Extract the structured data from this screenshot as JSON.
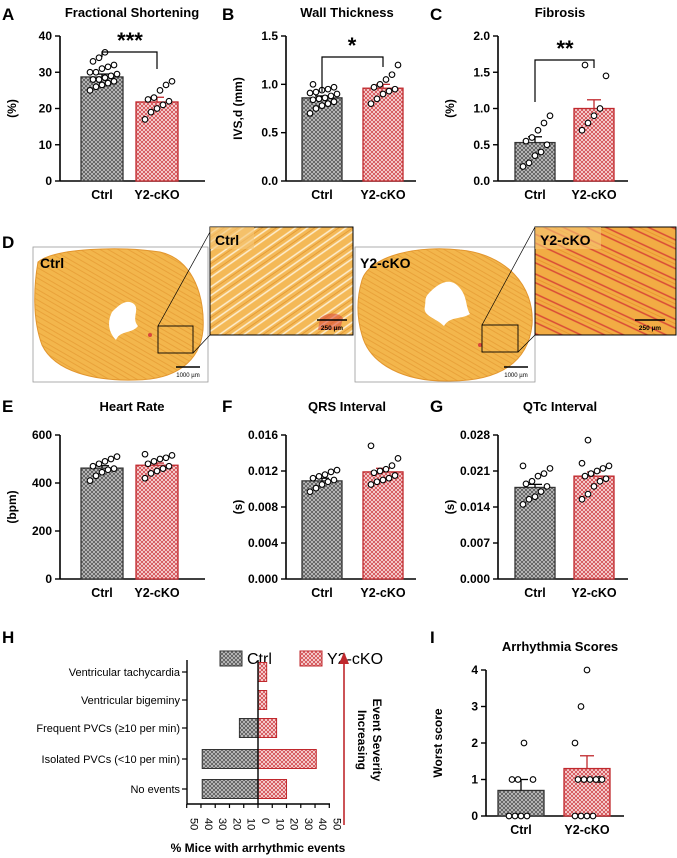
{
  "colors": {
    "ctrl_fill": "#9a9a9a",
    "ko_fill": "#f3c5c5",
    "ko_stroke": "#c0282d",
    "tissue": "#f0b548",
    "tissue_dark": "#e3902a",
    "fibrosis": "#d9463b",
    "axis": "#000000"
  },
  "panels": {
    "A": {
      "letter": "A",
      "sig": "***"
    },
    "B": {
      "letter": "B",
      "sig": "*"
    },
    "C": {
      "letter": "C",
      "sig": "**"
    },
    "D": {
      "letter": "D",
      "ctrl_label": "Ctrl",
      "ctrl_inset_label": "Ctrl",
      "ko_label": "Y2-cKO",
      "ko_inset_label": "Y2-cKO",
      "scale_1000_a": "1000 µm",
      "scale_250_a": "250 µm",
      "scale_1000_b": "1000 µm",
      "scale_250_b": "250 µm"
    },
    "E": {
      "letter": "E"
    },
    "F": {
      "letter": "F"
    },
    "G": {
      "letter": "G"
    },
    "H": {
      "letter": "H"
    },
    "I": {
      "letter": "I"
    }
  },
  "chart_data": [
    {
      "id": "A",
      "type": "bar",
      "title": "Fractional Shortening",
      "ylabel": "(%)",
      "xlabel": "",
      "categories": [
        "Ctrl",
        "Y2-cKO"
      ],
      "values": [
        28.7,
        21.8
      ],
      "sem": [
        0.8,
        1.3
      ],
      "ylim": [
        0,
        40
      ],
      "yticks": [
        "0",
        "10",
        "20",
        "30",
        "40"
      ],
      "points": [
        [
          25,
          26,
          26.5,
          27,
          27.5,
          28,
          28,
          28.5,
          29,
          29.5,
          30,
          30,
          31,
          31.5,
          32,
          33,
          34,
          35.5
        ],
        [
          17,
          19,
          20,
          21,
          22,
          22.5,
          23,
          25,
          26.5,
          27.5
        ]
      ]
    },
    {
      "id": "B",
      "type": "bar",
      "title": "Wall Thickness",
      "ylabel": "IVS,d (mm)",
      "xlabel": "",
      "categories": [
        "Ctrl",
        "Y2-cKO"
      ],
      "values": [
        0.86,
        0.96
      ],
      "sem": [
        0.02,
        0.04
      ],
      "ylim": [
        0,
        1.5
      ],
      "yticks": [
        "0.0",
        "0.5",
        "1.0",
        "1.5"
      ],
      "points": [
        [
          0.7,
          0.75,
          0.78,
          0.8,
          0.82,
          0.84,
          0.85,
          0.86,
          0.88,
          0.9,
          0.91,
          0.92,
          0.94,
          0.95,
          0.97,
          1.0
        ],
        [
          0.8,
          0.85,
          0.9,
          0.93,
          0.95,
          0.97,
          1.0,
          1.05,
          1.1,
          1.2
        ]
      ]
    },
    {
      "id": "C",
      "type": "bar",
      "title": "Fibrosis",
      "ylabel": "(%)",
      "xlabel": "",
      "categories": [
        "Ctrl",
        "Y2-cKO"
      ],
      "values": [
        0.53,
        1.0
      ],
      "sem": [
        0.08,
        0.12
      ],
      "ylim": [
        0,
        2.0
      ],
      "yticks": [
        "0.0",
        "0.5",
        "1.0",
        "1.5",
        "2.0"
      ],
      "points": [
        [
          0.2,
          0.25,
          0.35,
          0.4,
          0.5,
          0.55,
          0.6,
          0.7,
          0.8,
          0.9
        ],
        [
          0.7,
          0.8,
          0.9,
          1.0,
          1.45,
          1.6
        ]
      ]
    },
    {
      "id": "E",
      "type": "bar",
      "title": "Heart Rate",
      "ylabel": "(bpm)",
      "xlabel": "",
      "categories": [
        "Ctrl",
        "Y2-cKO"
      ],
      "values": [
        462,
        474
      ],
      "sem": [
        10,
        9
      ],
      "ylim": [
        0,
        600
      ],
      "yticks": [
        "0",
        "200",
        "400",
        "600"
      ],
      "points": [
        [
          410,
          430,
          445,
          455,
          460,
          470,
          480,
          490,
          500,
          510
        ],
        [
          420,
          440,
          450,
          460,
          470,
          480,
          490,
          500,
          505,
          515,
          520
        ]
      ]
    },
    {
      "id": "F",
      "type": "bar",
      "title": "QRS Interval",
      "ylabel": "(s)",
      "xlabel": "",
      "categories": [
        "Ctrl",
        "Y2-cKO"
      ],
      "values": [
        0.0109,
        0.0119
      ],
      "sem": [
        0.0003,
        0.0004
      ],
      "ylim": [
        0,
        0.016
      ],
      "yticks": [
        "0.000",
        "0.004",
        "0.008",
        "0.012",
        "0.016"
      ],
      "points": [
        [
          0.0097,
          0.0101,
          0.0105,
          0.0108,
          0.011,
          0.0112,
          0.0114,
          0.0116,
          0.0119,
          0.0121
        ],
        [
          0.0105,
          0.0108,
          0.011,
          0.0112,
          0.0115,
          0.0118,
          0.012,
          0.0122,
          0.0126,
          0.0134,
          0.0148
        ]
      ]
    },
    {
      "id": "G",
      "type": "bar",
      "title": "QTc Interval",
      "ylabel": "(s)",
      "xlabel": "",
      "categories": [
        "Ctrl",
        "Y2-cKO"
      ],
      "values": [
        0.0178,
        0.02
      ],
      "sem": [
        0.0006,
        0.0008
      ],
      "ylim": [
        0,
        0.028
      ],
      "yticks": [
        "0.000",
        "0.007",
        "0.014",
        "0.021",
        "0.028"
      ],
      "points": [
        [
          0.0145,
          0.0155,
          0.016,
          0.017,
          0.018,
          0.0185,
          0.019,
          0.02,
          0.0205,
          0.0215,
          0.022
        ],
        [
          0.0155,
          0.0165,
          0.018,
          0.019,
          0.0195,
          0.02,
          0.0205,
          0.021,
          0.0215,
          0.022,
          0.0225,
          0.027
        ]
      ]
    },
    {
      "id": "H",
      "type": "bar",
      "orientation": "horizontal-diverging",
      "legend": [
        "Ctrl",
        "Y2-cKO"
      ],
      "categories": [
        "Ventricular tachycardia",
        "Ventricular bigeminy",
        "Frequent PVCs (≥10 per min)",
        "Isolated PVCs (<10 per min)",
        "No events"
      ],
      "series": [
        {
          "name": "Ctrl",
          "values": [
            0,
            0,
            15,
            45,
            45
          ]
        },
        {
          "name": "Y2-cKO",
          "values": [
            7,
            7,
            15,
            47,
            23
          ]
        }
      ],
      "xlim": [
        -50,
        50
      ],
      "xticks": [
        "50",
        "40",
        "30",
        "20",
        "10",
        "0",
        "10",
        "20",
        "30",
        "40",
        "50"
      ],
      "xlabel": "% Mice with arrhythmic events",
      "annotation_line1": "Increasing",
      "annotation_line2": "Event Severity"
    },
    {
      "id": "I",
      "type": "bar",
      "title": "Arrhythmia Scores",
      "ylabel": "Worst score",
      "xlabel": "",
      "categories": [
        "Ctrl",
        "Y2-cKO"
      ],
      "values": [
        0.7,
        1.3
      ],
      "sem": [
        0.3,
        0.35
      ],
      "ylim": [
        0,
        4
      ],
      "yticks": [
        "0",
        "1",
        "2",
        "3",
        "4"
      ],
      "points": [
        [
          0,
          0,
          0,
          0,
          1,
          1,
          1,
          2
        ],
        [
          0,
          0,
          0,
          0,
          1,
          1,
          1,
          1,
          1,
          1,
          2,
          3,
          4
        ]
      ]
    }
  ]
}
